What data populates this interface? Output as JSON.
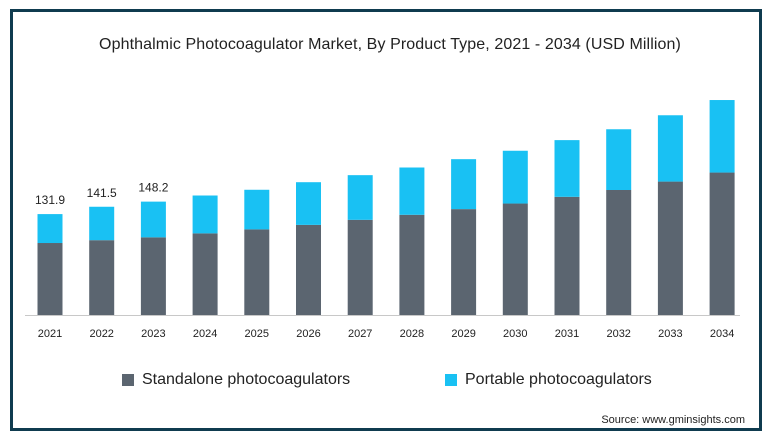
{
  "colors": {
    "standalone": "#5b6570",
    "portable": "#19c1f3",
    "frame": "#0f3b4f"
  },
  "chart_data": {
    "type": "bar",
    "stacked": true,
    "title": "Ophthalmic Photocoagulator Market, By Product Type, 2021 - 2034 (USD Million)",
    "xlabel": "",
    "ylabel": "",
    "categories": [
      "2021",
      "2022",
      "2023",
      "2024",
      "2025",
      "2026",
      "2027",
      "2028",
      "2029",
      "2030",
      "2031",
      "2032",
      "2033",
      "2034"
    ],
    "series": [
      {
        "name": "Standalone photocoagulators",
        "color": "#5b6570",
        "values": [
          94.1,
          97.8,
          101.5,
          106.7,
          111.9,
          117.8,
          124.4,
          131.0,
          138.4,
          145.7,
          154.5,
          163.4,
          174.4,
          186.2
        ]
      },
      {
        "name": "Portable photocoagulators",
        "color": "#19c1f3",
        "values": [
          37.8,
          43.7,
          46.7,
          49.5,
          51.8,
          55.8,
          58.4,
          61.8,
          65.3,
          69.0,
          74.1,
          79.4,
          86.7,
          94.8
        ]
      }
    ],
    "data_labels": [
      "131.9",
      "141.5",
      "148.2"
    ],
    "ylim": [
      0,
      300
    ],
    "grid": false,
    "legend_position": "bottom",
    "source": "Source: www.gminsights.com"
  }
}
